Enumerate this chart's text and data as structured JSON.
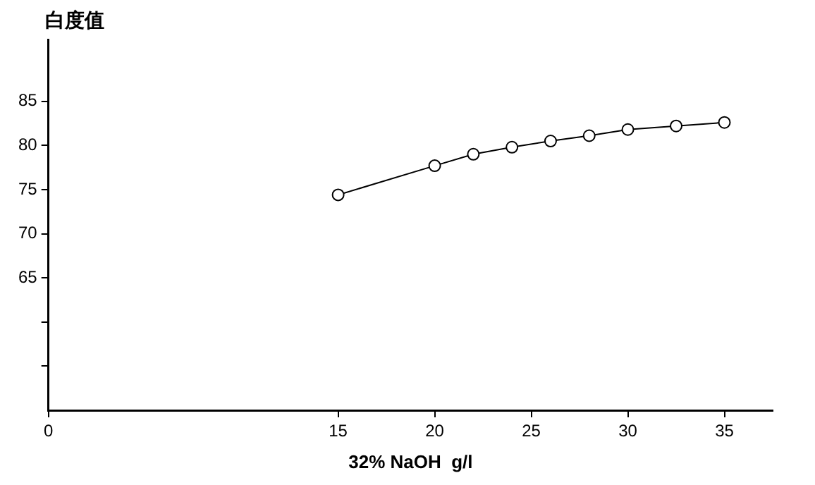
{
  "chart_data": {
    "type": "line",
    "xlabel": "32% NaOH  g/l",
    "ylabel": "白度值",
    "x": [
      15,
      20,
      22,
      24,
      26,
      28,
      30,
      32.5,
      35
    ],
    "series": [
      {
        "color": "#000000",
        "values": [
          74.4,
          77.7,
          79.0,
          79.8,
          80.5,
          81.1,
          81.8,
          82.2,
          82.6
        ]
      }
    ],
    "xlim": [
      0,
      37.5
    ],
    "xticks": [
      0,
      15,
      20,
      25,
      30,
      35
    ],
    "ylim": [
      50,
      92
    ],
    "yticks": [
      {
        "value": 55,
        "label": null
      },
      {
        "value": 60,
        "label": null
      },
      65,
      70,
      75,
      80,
      85
    ],
    "grid": false,
    "legend": false,
    "marker": "circle",
    "line_style": "solid"
  }
}
